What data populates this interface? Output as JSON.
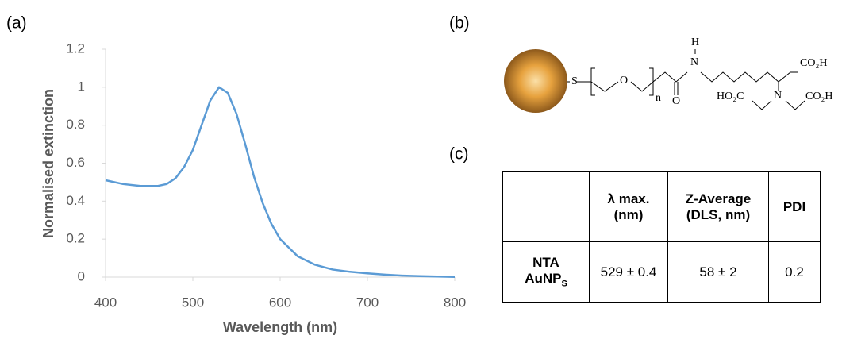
{
  "panel_labels": [
    "(a)",
    "(b)",
    "(c)"
  ],
  "chart_data": {
    "type": "line",
    "x_label": "Wavelength (nm)",
    "y_label": "Normalised extinction",
    "x": [
      400,
      420,
      440,
      460,
      470,
      480,
      490,
      500,
      510,
      520,
      530,
      540,
      550,
      560,
      570,
      580,
      590,
      600,
      620,
      640,
      660,
      680,
      700,
      720,
      740,
      760,
      780,
      800
    ],
    "values": [
      0.51,
      0.49,
      0.48,
      0.48,
      0.49,
      0.52,
      0.58,
      0.67,
      0.8,
      0.93,
      1.0,
      0.97,
      0.86,
      0.7,
      0.53,
      0.39,
      0.28,
      0.2,
      0.11,
      0.065,
      0.04,
      0.028,
      0.02,
      0.013,
      0.008,
      0.005,
      0.003,
      0.001
    ],
    "color": "#5b9bd5",
    "xlim": [
      400,
      800
    ],
    "xticks": [
      400,
      500,
      600,
      700,
      800
    ],
    "ylim": [
      0,
      1.2
    ],
    "yticks": [
      0,
      0.2,
      0.4,
      0.6,
      0.8,
      1,
      1.2
    ],
    "grid": false
  },
  "diagram": {
    "atoms": [
      "S",
      "O",
      "n",
      "O",
      "H",
      "N",
      "CO₂H",
      "HO₂C",
      "N",
      "CO₂H"
    ]
  },
  "table": {
    "header": [
      "λ max. (nm)",
      "Z-Average (DLS, nm)",
      "PDI"
    ],
    "rows": [
      {
        "label": "NTA",
        "label2": "AuNP",
        "label_subscript": "S",
        "cells": [
          "529 ± 0.4",
          "58 ± 2",
          "0.2"
        ]
      }
    ]
  }
}
